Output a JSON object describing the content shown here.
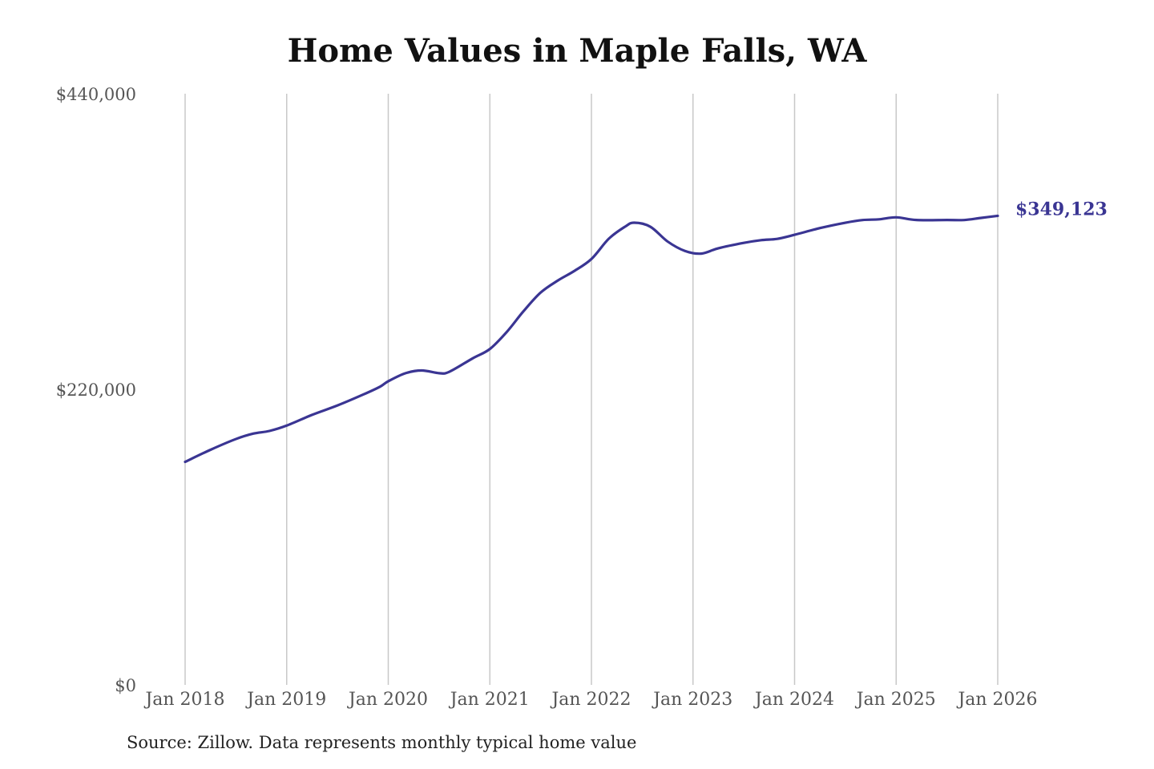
{
  "chart_data": {
    "type": "line",
    "title": "Home Values in Maple Falls, WA",
    "xlabel": "",
    "ylabel": "",
    "ylim": [
      0,
      440000
    ],
    "y_ticks": [
      {
        "value": 0,
        "label": "$0"
      },
      {
        "value": 220000,
        "label": "$220,000"
      },
      {
        "value": 440000,
        "label": "$440,000"
      }
    ],
    "x_ticks": [
      {
        "value": 2018,
        "label": "Jan 2018"
      },
      {
        "value": 2019,
        "label": "Jan 2019"
      },
      {
        "value": 2020,
        "label": "Jan 2020"
      },
      {
        "value": 2021,
        "label": "Jan 2021"
      },
      {
        "value": 2022,
        "label": "Jan 2022"
      },
      {
        "value": 2023,
        "label": "Jan 2023"
      },
      {
        "value": 2024,
        "label": "Jan 2024"
      },
      {
        "value": 2025,
        "label": "Jan 2025"
      },
      {
        "value": 2026,
        "label": "Jan 2026"
      }
    ],
    "xlim": [
      2018,
      2026
    ],
    "grid": "vertical",
    "legend": "none",
    "series_color": "#3a3593",
    "series": [
      {
        "points": [
          [
            2018.0,
            166000
          ],
          [
            2018.25,
            175000
          ],
          [
            2018.5,
            183000
          ],
          [
            2018.67,
            187000
          ],
          [
            2018.83,
            189000
          ],
          [
            2019.0,
            193000
          ],
          [
            2019.25,
            201000
          ],
          [
            2019.5,
            208000
          ],
          [
            2019.75,
            216000
          ],
          [
            2019.92,
            222000
          ],
          [
            2020.0,
            226000
          ],
          [
            2020.17,
            232000
          ],
          [
            2020.33,
            234000
          ],
          [
            2020.5,
            232000
          ],
          [
            2020.6,
            233000
          ],
          [
            2020.83,
            243000
          ],
          [
            2021.0,
            250000
          ],
          [
            2021.17,
            263000
          ],
          [
            2021.33,
            278000
          ],
          [
            2021.5,
            292000
          ],
          [
            2021.67,
            301000
          ],
          [
            2021.83,
            308000
          ],
          [
            2022.0,
            317000
          ],
          [
            2022.17,
            332000
          ],
          [
            2022.33,
            341000
          ],
          [
            2022.42,
            344000
          ],
          [
            2022.58,
            341000
          ],
          [
            2022.75,
            330000
          ],
          [
            2022.92,
            323000
          ],
          [
            2023.08,
            321000
          ],
          [
            2023.25,
            325000
          ],
          [
            2023.5,
            329000
          ],
          [
            2023.67,
            331000
          ],
          [
            2023.83,
            332000
          ],
          [
            2024.0,
            335000
          ],
          [
            2024.25,
            340000
          ],
          [
            2024.5,
            344000
          ],
          [
            2024.67,
            346000
          ],
          [
            2024.83,
            346500
          ],
          [
            2025.0,
            348000
          ],
          [
            2025.2,
            346000
          ],
          [
            2025.5,
            346000
          ],
          [
            2025.67,
            346000
          ],
          [
            2025.83,
            347500
          ],
          [
            2026.0,
            349123
          ]
        ]
      }
    ],
    "end_label": "$349,123"
  },
  "source_note": "Source: Zillow. Data represents monthly typical home value"
}
